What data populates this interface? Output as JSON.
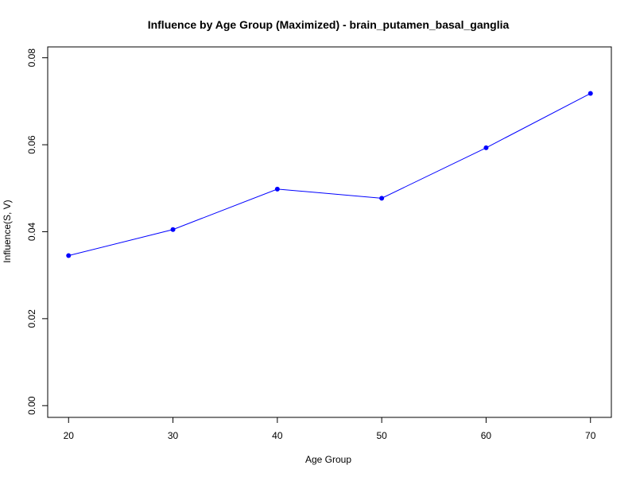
{
  "chart_data": {
    "type": "line",
    "title": "Influence by Age Group (Maximized) - brain_putamen_basal_ganglia",
    "xlabel": "Age Group",
    "ylabel": "Influence(S, V)",
    "x": [
      20,
      30,
      40,
      50,
      60,
      70
    ],
    "series": [
      {
        "values": [
          0.0345,
          0.0405,
          0.0498,
          0.0477,
          0.0593,
          0.0718
        ],
        "color": "#0000ff"
      }
    ],
    "xlim": [
      18,
      72
    ],
    "ylim": [
      -0.0027,
      0.0825
    ],
    "xticks": [
      20,
      30,
      40,
      50,
      60,
      70
    ],
    "xtick_labels": [
      "20",
      "30",
      "40",
      "50",
      "60",
      "70"
    ],
    "yticks": [
      0.0,
      0.02,
      0.04,
      0.06,
      0.08
    ],
    "ytick_labels": [
      "0.00",
      "0.02",
      "0.04",
      "0.06",
      "0.08"
    ],
    "grid": false,
    "legend": "none"
  }
}
